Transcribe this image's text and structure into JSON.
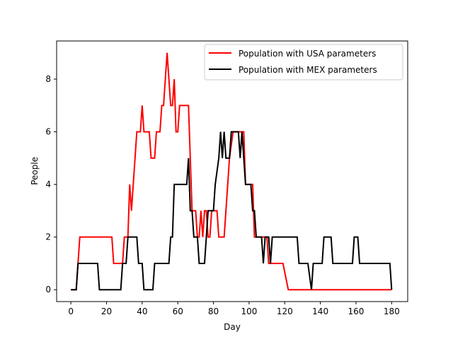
{
  "chart_data": {
    "type": "line",
    "title": "",
    "xlabel": "Day",
    "ylabel": "People",
    "xlim": [
      -8,
      189
    ],
    "ylim": [
      -0.45,
      9.45
    ],
    "xticks": [
      0,
      20,
      40,
      60,
      80,
      100,
      120,
      140,
      160,
      180
    ],
    "yticks": [
      0,
      2,
      4,
      6,
      8
    ],
    "grid": false,
    "legend_position": "top-right",
    "series": [
      {
        "name": "Population with USA parameters",
        "color": "#ff0000",
        "points": [
          [
            0,
            0
          ],
          [
            3,
            0
          ],
          [
            5,
            2
          ],
          [
            23,
            2
          ],
          [
            24,
            1
          ],
          [
            29,
            1
          ],
          [
            30,
            2
          ],
          [
            32,
            2
          ],
          [
            33,
            4
          ],
          [
            34,
            3
          ],
          [
            35,
            4
          ],
          [
            37,
            6
          ],
          [
            39,
            6
          ],
          [
            40,
            7
          ],
          [
            41,
            6
          ],
          [
            44,
            6
          ],
          [
            45,
            5
          ],
          [
            47,
            5
          ],
          [
            48,
            6
          ],
          [
            50,
            6
          ],
          [
            51,
            7
          ],
          [
            52,
            7
          ],
          [
            54,
            9
          ],
          [
            56,
            7
          ],
          [
            57,
            7
          ],
          [
            58,
            8
          ],
          [
            59,
            6
          ],
          [
            60,
            6
          ],
          [
            61,
            7
          ],
          [
            66,
            7
          ],
          [
            67,
            5
          ],
          [
            68,
            3
          ],
          [
            69,
            3
          ],
          [
            70,
            3
          ],
          [
            71,
            2
          ],
          [
            72,
            2
          ],
          [
            73,
            3
          ],
          [
            74,
            2
          ],
          [
            75,
            3
          ],
          [
            76,
            3
          ],
          [
            77,
            2
          ],
          [
            78,
            2
          ],
          [
            79,
            3
          ],
          [
            82,
            3
          ],
          [
            83,
            2
          ],
          [
            86,
            2
          ],
          [
            87,
            3
          ],
          [
            88,
            4
          ],
          [
            89,
            5
          ],
          [
            91,
            6
          ],
          [
            97,
            6
          ],
          [
            98,
            4
          ],
          [
            102,
            4
          ],
          [
            103,
            2
          ],
          [
            110,
            2
          ],
          [
            111,
            1
          ],
          [
            119,
            1
          ],
          [
            122,
            0
          ],
          [
            180,
            0
          ]
        ]
      },
      {
        "name": "Population with MEX parameters",
        "color": "#000000",
        "points": [
          [
            0,
            0
          ],
          [
            3,
            0
          ],
          [
            4,
            1
          ],
          [
            15,
            1
          ],
          [
            16,
            0
          ],
          [
            28,
            0
          ],
          [
            29,
            1
          ],
          [
            31,
            1
          ],
          [
            32,
            2
          ],
          [
            37,
            2
          ],
          [
            38,
            1
          ],
          [
            40,
            1
          ],
          [
            41,
            0
          ],
          [
            46,
            0
          ],
          [
            47,
            1
          ],
          [
            55,
            1
          ],
          [
            56,
            2
          ],
          [
            57,
            2
          ],
          [
            58,
            4
          ],
          [
            65,
            4
          ],
          [
            66,
            5
          ],
          [
            67,
            3
          ],
          [
            68,
            3
          ],
          [
            69,
            2
          ],
          [
            71,
            2
          ],
          [
            72,
            1
          ],
          [
            75,
            1
          ],
          [
            76,
            2
          ],
          [
            77,
            3
          ],
          [
            80,
            3
          ],
          [
            81,
            4
          ],
          [
            83,
            5
          ],
          [
            84,
            6
          ],
          [
            85,
            5
          ],
          [
            86,
            6
          ],
          [
            87,
            5
          ],
          [
            89,
            5
          ],
          [
            90,
            6
          ],
          [
            94,
            6
          ],
          [
            95,
            5
          ],
          [
            96,
            6
          ],
          [
            97,
            5
          ],
          [
            98,
            4
          ],
          [
            101,
            4
          ],
          [
            102,
            3
          ],
          [
            103,
            3
          ],
          [
            104,
            2
          ],
          [
            107,
            2
          ],
          [
            108,
            1
          ],
          [
            109,
            2
          ],
          [
            111,
            2
          ],
          [
            112,
            1
          ],
          [
            113,
            2
          ],
          [
            127,
            2
          ],
          [
            128,
            1
          ],
          [
            133,
            1
          ],
          [
            135,
            0
          ],
          [
            136,
            1
          ],
          [
            141,
            1
          ],
          [
            142,
            2
          ],
          [
            146,
            2
          ],
          [
            147,
            1
          ],
          [
            158,
            1
          ],
          [
            159,
            2
          ],
          [
            161,
            2
          ],
          [
            162,
            1
          ],
          [
            179,
            1
          ],
          [
            180,
            0
          ]
        ]
      }
    ]
  }
}
